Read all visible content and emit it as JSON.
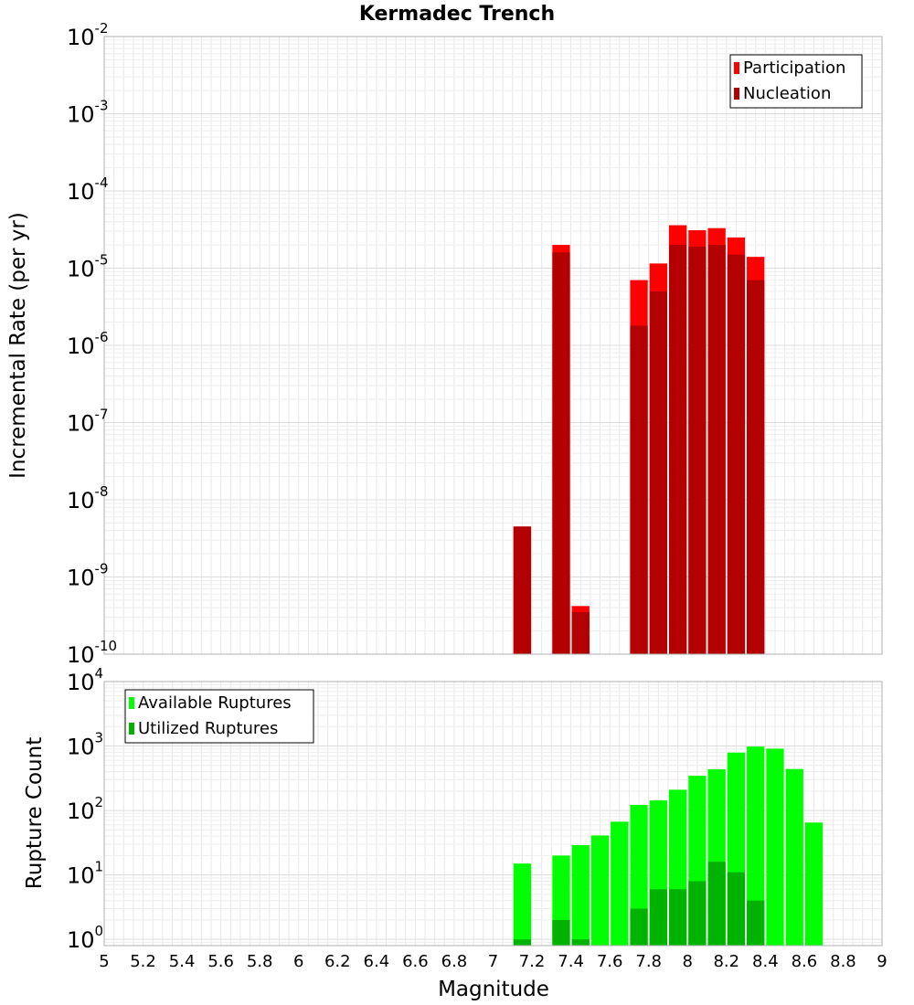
{
  "chart_data": [
    {
      "type": "bar",
      "title": "Kermadec Trench",
      "xlabel": "",
      "ylabel": "Incremental Rate (per yr)",
      "yscale": "log",
      "ylim": [
        1e-10,
        0.01
      ],
      "xlim": [
        5,
        9
      ],
      "bin_width": 0.1,
      "y_ticks": [
        {
          "base": "10",
          "exp": "-2"
        },
        {
          "base": "10",
          "exp": "-3"
        },
        {
          "base": "10",
          "exp": "-4"
        },
        {
          "base": "10",
          "exp": "-5"
        },
        {
          "base": "10",
          "exp": "-6"
        },
        {
          "base": "10",
          "exp": "-7"
        },
        {
          "base": "10",
          "exp": "-8"
        },
        {
          "base": "10",
          "exp": "-9"
        },
        {
          "base": "10",
          "exp": "-10"
        }
      ],
      "legend": {
        "position": "top-right"
      },
      "series": [
        {
          "name": "Participation",
          "color": "#ff0000",
          "points": [
            [
              7.15,
              4.5e-09
            ],
            [
              7.35,
              2e-05
            ],
            [
              7.45,
              4.2e-10
            ],
            [
              7.75,
              7e-06
            ],
            [
              7.85,
              1.15e-05
            ],
            [
              7.95,
              3.6e-05
            ],
            [
              8.05,
              3.1e-05
            ],
            [
              8.15,
              3.3e-05
            ],
            [
              8.25,
              2.5e-05
            ],
            [
              8.35,
              1.4e-05
            ]
          ]
        },
        {
          "name": "Nucleation",
          "color": "#b30000",
          "points": [
            [
              7.15,
              4.5e-09
            ],
            [
              7.35,
              1.6e-05
            ],
            [
              7.45,
              3.5e-10
            ],
            [
              7.75,
              1.8e-06
            ],
            [
              7.85,
              5e-06
            ],
            [
              7.95,
              2e-05
            ],
            [
              8.05,
              1.9e-05
            ],
            [
              8.15,
              2e-05
            ],
            [
              8.25,
              1.5e-05
            ],
            [
              8.35,
              7e-06
            ]
          ]
        }
      ]
    },
    {
      "type": "bar",
      "title": "",
      "xlabel": "Magnitude",
      "ylabel": "Rupture Count",
      "yscale": "log",
      "ylim": [
        0.8,
        10000
      ],
      "xlim": [
        5,
        9
      ],
      "bin_width": 0.1,
      "x_tick_labels": [
        "5",
        "5.2",
        "5.4",
        "5.6",
        "5.8",
        "6",
        "6.2",
        "6.4",
        "6.6",
        "6.8",
        "7",
        "7.2",
        "7.4",
        "7.6",
        "7.8",
        "8",
        "8.2",
        "8.4",
        "8.6",
        "8.8",
        "9"
      ],
      "y_ticks": [
        {
          "base": "10",
          "exp": "4"
        },
        {
          "base": "10",
          "exp": "3"
        },
        {
          "base": "10",
          "exp": "2"
        },
        {
          "base": "10",
          "exp": "1"
        },
        {
          "base": "10",
          "exp": "0"
        }
      ],
      "legend": {
        "position": "top-left"
      },
      "series": [
        {
          "name": "Available Ruptures",
          "color": "#00ff00",
          "points": [
            [
              7.15,
              15
            ],
            [
              7.35,
              20
            ],
            [
              7.45,
              29
            ],
            [
              7.55,
              41
            ],
            [
              7.65,
              67
            ],
            [
              7.75,
              122
            ],
            [
              7.85,
              143
            ],
            [
              7.95,
              210
            ],
            [
              8.05,
              345
            ],
            [
              8.15,
              435
            ],
            [
              8.25,
              790
            ],
            [
              8.35,
              980
            ],
            [
              8.45,
              910
            ],
            [
              8.55,
              440
            ],
            [
              8.65,
              65
            ]
          ]
        },
        {
          "name": "Utilized Ruptures",
          "color": "#00b300",
          "points": [
            [
              7.15,
              1
            ],
            [
              7.35,
              2
            ],
            [
              7.45,
              1
            ],
            [
              7.75,
              3
            ],
            [
              7.85,
              6
            ],
            [
              7.95,
              6
            ],
            [
              8.05,
              8
            ],
            [
              8.15,
              16
            ],
            [
              8.25,
              11
            ],
            [
              8.35,
              4
            ]
          ]
        }
      ]
    }
  ]
}
